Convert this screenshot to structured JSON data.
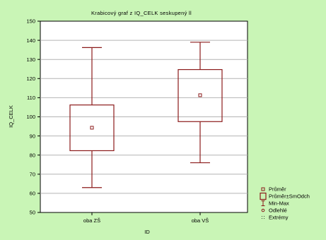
{
  "chart_data": {
    "type": "box",
    "title": "Krabicový graf z IQ_CELK seskupený ll",
    "xlabel": "ID",
    "ylabel": "IQ_CELK",
    "ylim": [
      50,
      150
    ],
    "yticks": [
      50,
      60,
      70,
      80,
      90,
      100,
      110,
      120,
      130,
      140,
      150
    ],
    "grid": true,
    "legend_position": "bottom-right",
    "categories": [
      "oba ZŠ",
      "oba VŠ"
    ],
    "boxes": [
      {
        "category": "oba ZŠ",
        "mean": 94.3,
        "box_low": 82.3,
        "box_high": 106.2,
        "min": 63.0,
        "max": 136.2
      },
      {
        "category": "oba VŠ",
        "mean": 111.3,
        "box_low": 97.5,
        "box_high": 124.7,
        "min": 76.0,
        "max": 139.0
      }
    ],
    "legend": [
      {
        "label": "Průměr",
        "symbol": "small-square"
      },
      {
        "label": "Průměr±SmOdch",
        "symbol": "box"
      },
      {
        "label": "Min-Max",
        "symbol": "whisker"
      },
      {
        "label": "Odlehlé",
        "symbol": "circle"
      },
      {
        "label": "Extrémy",
        "symbol": "asterisk"
      }
    ],
    "colors": {
      "background": "#c9f5b6",
      "plot_bg": "#ffffff",
      "series": "#8b1a1a",
      "grid": "#b4b4b4",
      "axis": "#000000"
    }
  }
}
